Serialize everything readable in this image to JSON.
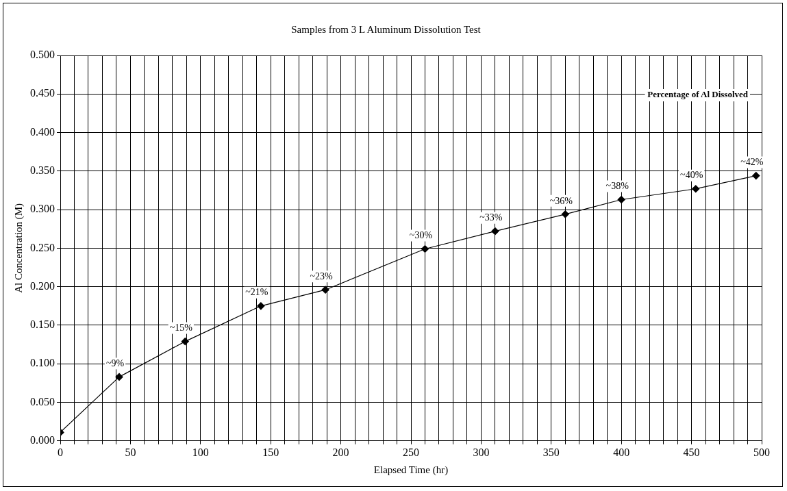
{
  "chart_data": {
    "type": "line",
    "title": "Samples from 3 L Aluminum Dissolution Test",
    "xlabel": "Elapsed Time (hr)",
    "ylabel": "Al Concentration (M)",
    "x": [
      0,
      42,
      89,
      143,
      189,
      260,
      310,
      360,
      400,
      453,
      496
    ],
    "series": [
      {
        "color": "#000000",
        "values": [
          0.011,
          0.083,
          0.129,
          0.175,
          0.196,
          0.249,
          0.272,
          0.294,
          0.313,
          0.327,
          0.344
        ]
      }
    ],
    "annotations": [
      "Percentage of Al Dissolved",
      {
        "text": "~9%",
        "x": 42,
        "y": 0.083
      },
      {
        "text": "~15%",
        "x": 89,
        "y": 0.129
      },
      {
        "text": "~21%",
        "x": 143,
        "y": 0.175
      },
      {
        "text": "~23%",
        "x": 189,
        "y": 0.196
      },
      {
        "text": "~30%",
        "x": 260,
        "y": 0.249
      },
      {
        "text": "~33%",
        "x": 310,
        "y": 0.272
      },
      {
        "text": "~36%",
        "x": 360,
        "y": 0.294
      },
      {
        "text": "~38%",
        "x": 400,
        "y": 0.313
      },
      {
        "text": "~40%",
        "x": 453,
        "y": 0.327
      },
      {
        "text": "~42%",
        "x": 496,
        "y": 0.344
      }
    ],
    "xlim": [
      0,
      500
    ],
    "xticks": [
      0,
      {
        "value": 10,
        "label": null
      },
      {
        "value": 20,
        "label": null
      },
      {
        "value": 30,
        "label": null
      },
      {
        "value": 40,
        "label": null
      },
      50,
      {
        "value": 60,
        "label": null
      },
      {
        "value": 70,
        "label": null
      },
      {
        "value": 80,
        "label": null
      },
      {
        "value": 90,
        "label": null
      },
      100,
      {
        "value": 110,
        "label": null
      },
      {
        "value": 120,
        "label": null
      },
      {
        "value": 130,
        "label": null
      },
      {
        "value": 140,
        "label": null
      },
      150,
      {
        "value": 160,
        "label": null
      },
      {
        "value": 170,
        "label": null
      },
      {
        "value": 180,
        "label": null
      },
      {
        "value": 190,
        "label": null
      },
      200,
      {
        "value": 210,
        "label": null
      },
      {
        "value": 220,
        "label": null
      },
      {
        "value": 230,
        "label": null
      },
      {
        "value": 240,
        "label": null
      },
      250,
      {
        "value": 260,
        "label": null
      },
      {
        "value": 270,
        "label": null
      },
      {
        "value": 280,
        "label": null
      },
      {
        "value": 290,
        "label": null
      },
      300,
      {
        "value": 310,
        "label": null
      },
      {
        "value": 320,
        "label": null
      },
      {
        "value": 330,
        "label": null
      },
      {
        "value": 340,
        "label": null
      },
      350,
      {
        "value": 360,
        "label": null
      },
      {
        "value": 370,
        "label": null
      },
      {
        "value": 380,
        "label": null
      },
      {
        "value": 390,
        "label": null
      },
      400,
      {
        "value": 410,
        "label": null
      },
      {
        "value": 420,
        "label": null
      },
      {
        "value": 430,
        "label": null
      },
      {
        "value": 440,
        "label": null
      },
      450,
      {
        "value": 460,
        "label": null
      },
      {
        "value": 470,
        "label": null
      },
      {
        "value": 480,
        "label": null
      },
      {
        "value": 490,
        "label": null
      },
      500
    ],
    "ylim": [
      0,
      0.5
    ],
    "yticks": [
      {
        "value": 0,
        "label": "0.000"
      },
      {
        "value": 0.05,
        "label": "0.050"
      },
      {
        "value": 0.1,
        "label": "0.100"
      },
      {
        "value": 0.15,
        "label": "0.150"
      },
      {
        "value": 0.2,
        "label": "0.200"
      },
      {
        "value": 0.25,
        "label": "0.250"
      },
      {
        "value": 0.3,
        "label": "0.300"
      },
      {
        "value": 0.35,
        "label": "0.350"
      },
      {
        "value": 0.4,
        "label": "0.400"
      },
      {
        "value": 0.45,
        "label": "0.450"
      },
      {
        "value": 0.5,
        "label": "0.500"
      }
    ],
    "grid": true,
    "legend": false,
    "marker": "diamond",
    "line_style": "solid"
  }
}
